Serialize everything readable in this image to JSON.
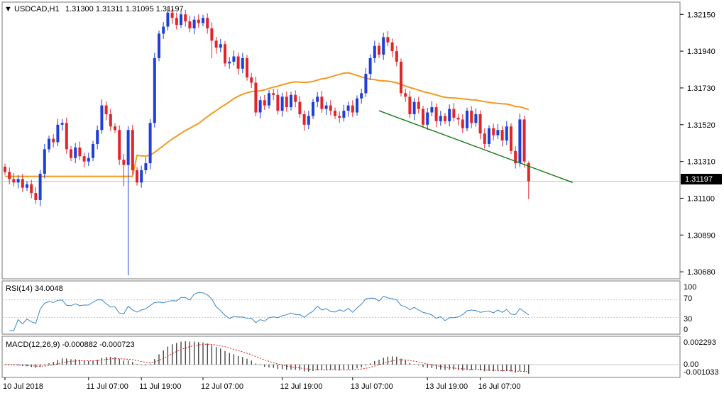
{
  "header": {
    "arrow": "▼",
    "symbol": "USDCAD,H1",
    "ohlc": "1.31300 1.31311 1.31095 1.31197"
  },
  "price_axis": {
    "ticks": [
      "1.32150",
      "1.31940",
      "1.31730",
      "1.31520",
      "1.31310",
      "1.31100",
      "1.30890",
      "1.30680"
    ],
    "current_label": "1.31197"
  },
  "rsi_panel": {
    "label": "RSI(14) 34.0048",
    "ticks": [
      "100",
      "70",
      "30",
      "0"
    ]
  },
  "macd_panel": {
    "label": "MACD(12,26,9) -0.000882 -0.000723",
    "ticks": [
      "0.002293",
      "0.00",
      "-0.001033"
    ]
  },
  "time_axis": {
    "labels": [
      "10 Jul 2018",
      "11 Jul 07:00",
      "11 Jul 19:00",
      "12 Jul 07:00",
      "12 Jul 19:00",
      "13 Jul 07:00",
      "13 Jul 19:00",
      "16 Jul 07:00"
    ]
  },
  "colors": {
    "bull": "#1f3fd6",
    "bear": "#e0262a",
    "ma": "#f39a1e",
    "trendline": "#1a7a1a",
    "rsi": "#3d84c6",
    "macd_signal": "#d11a1a",
    "grid": "#a8a8a8"
  },
  "chart_data": [
    {
      "type": "candlestick",
      "title": "USDCAD,H1",
      "ylim": [
        1.3064,
        1.3222
      ],
      "last_price": 1.31197,
      "ohlc_last": [
        1.313,
        1.31311,
        1.31095,
        1.31197
      ],
      "x": [
        "10 Jul 2018",
        "11 Jul 07:00",
        "11 Jul 19:00",
        "12 Jul 07:00",
        "12 Jul 19:00",
        "13 Jul 07:00",
        "13 Jul 19:00",
        "16 Jul 07:00"
      ],
      "closes": [
        1.3125,
        1.3121,
        1.3119,
        1.3121,
        1.3116,
        1.3118,
        1.3113,
        1.3109,
        1.3124,
        1.3138,
        1.3144,
        1.3142,
        1.3152,
        1.3153,
        1.3138,
        1.3133,
        1.3139,
        1.3134,
        1.3131,
        1.3133,
        1.3141,
        1.3149,
        1.3163,
        1.3158,
        1.3151,
        1.3149,
        1.3132,
        1.3129,
        1.3149,
        1.3126,
        1.3119,
        1.3126,
        1.313,
        1.3153,
        1.319,
        1.3204,
        1.3208,
        1.3216,
        1.3213,
        1.3209,
        1.3215,
        1.3211,
        1.3207,
        1.3212,
        1.321,
        1.3213,
        1.3207,
        1.32,
        1.3196,
        1.3198,
        1.3187,
        1.3188,
        1.3191,
        1.3184,
        1.319,
        1.3179,
        1.3176,
        1.3159,
        1.3166,
        1.3163,
        1.317,
        1.3169,
        1.316,
        1.3168,
        1.3162,
        1.3169,
        1.3165,
        1.3158,
        1.3152,
        1.3157,
        1.3165,
        1.3168,
        1.3161,
        1.3163,
        1.316,
        1.3157,
        1.3156,
        1.316,
        1.3163,
        1.3159,
        1.3167,
        1.317,
        1.3181,
        1.319,
        1.3197,
        1.3192,
        1.3202,
        1.3199,
        1.3194,
        1.3188,
        1.317,
        1.3168,
        1.3158,
        1.3165,
        1.3161,
        1.3152,
        1.3159,
        1.3162,
        1.3154,
        1.3157,
        1.3154,
        1.3161,
        1.3156,
        1.3155,
        1.315,
        1.316,
        1.3153,
        1.3158,
        1.3147,
        1.3141,
        1.315,
        1.3146,
        1.3149,
        1.3143,
        1.3151,
        1.3137,
        1.313,
        1.3155,
        1.3131,
        1.31197
      ]
    },
    {
      "type": "line",
      "title": "RSI(14) 34.0048",
      "ylim": [
        0,
        100
      ],
      "ticks": [
        100,
        70,
        30,
        0
      ],
      "last_value": 34.0048
    },
    {
      "type": "bar",
      "title": "MACD(12,26,9) -0.000882 -0.000723",
      "ylim": [
        -0.001033,
        0.002293
      ],
      "macd_last": -0.000882,
      "signal_last": -0.000723
    }
  ]
}
